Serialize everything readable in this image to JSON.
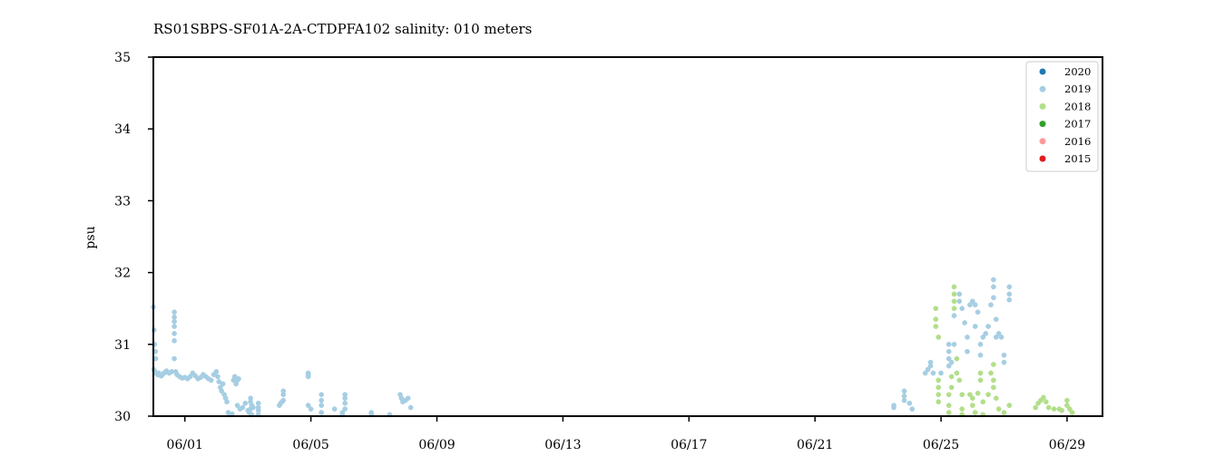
{
  "chart_data": {
    "type": "scatter",
    "title": "RS01SBPS-SF01A-2A-CTDPFA102 salinity: 010 meters",
    "xlabel": "",
    "ylabel": "psu",
    "xlim": [
      "05-31 00:00",
      "06-30 03:00"
    ],
    "ylim": [
      30,
      35
    ],
    "x_tick_labels": [
      "06/01",
      "06/05",
      "06/09",
      "06/13",
      "06/17",
      "06/21",
      "06/25",
      "06/29"
    ],
    "x_tick_dates": [
      "06-01",
      "06-05",
      "06-09",
      "06-13",
      "06-17",
      "06-21",
      "06-25",
      "06-29"
    ],
    "y_ticks": [
      30,
      31,
      32,
      33,
      34,
      35
    ],
    "grid": false,
    "legend_position": "top-right",
    "legend": [
      {
        "name": "2020",
        "color": "#1f78b4"
      },
      {
        "name": "2019",
        "color": "#a6cee3"
      },
      {
        "name": "2018",
        "color": "#b2df8a"
      },
      {
        "name": "2017",
        "color": "#33a02c"
      },
      {
        "name": "2016",
        "color": "#fb9a99"
      },
      {
        "name": "2015",
        "color": "#e31a1c"
      }
    ],
    "series": [
      {
        "name": "2019",
        "color": "#a6cee3",
        "points": [
          [
            "05-31 00:00",
            31.52
          ],
          [
            "05-31 00:30",
            31.2
          ],
          [
            "05-31 01:00",
            31.0
          ],
          [
            "05-31 01:30",
            30.9
          ],
          [
            "05-31 01:45",
            30.8
          ],
          [
            "05-31 00:15",
            30.65
          ],
          [
            "05-31 01:00",
            30.63
          ],
          [
            "05-31 02:00",
            30.6
          ],
          [
            "05-31 03:00",
            30.58
          ],
          [
            "05-31 04:00",
            30.6
          ],
          [
            "05-31 05:00",
            30.57
          ],
          [
            "05-31 06:00",
            30.56
          ],
          [
            "05-31 07:00",
            30.58
          ],
          [
            "05-31 08:00",
            30.6
          ],
          [
            "05-31 09:00",
            30.61
          ],
          [
            "05-31 10:00",
            30.63
          ],
          [
            "05-31 12:00",
            30.6
          ],
          [
            "05-31 14:00",
            30.62
          ],
          [
            "05-31 16:00",
            31.45
          ],
          [
            "05-31 16:00",
            31.38
          ],
          [
            "05-31 16:00",
            31.32
          ],
          [
            "05-31 16:00",
            31.25
          ],
          [
            "05-31 16:00",
            31.15
          ],
          [
            "05-31 16:00",
            31.05
          ],
          [
            "05-31 16:00",
            30.8
          ],
          [
            "05-31 17:00",
            30.62
          ],
          [
            "05-31 18:00",
            30.58
          ],
          [
            "05-31 20:00",
            30.55
          ],
          [
            "05-31 22:00",
            30.53
          ],
          [
            "06-01 00:00",
            30.54
          ],
          [
            "06-01 02:00",
            30.52
          ],
          [
            "06-01 04:00",
            30.55
          ],
          [
            "06-01 06:00",
            30.6
          ],
          [
            "06-01 08:00",
            30.56
          ],
          [
            "06-01 10:00",
            30.52
          ],
          [
            "06-01 12:00",
            30.54
          ],
          [
            "06-01 14:00",
            30.58
          ],
          [
            "06-01 16:00",
            30.55
          ],
          [
            "06-01 18:00",
            30.52
          ],
          [
            "06-01 20:00",
            30.5
          ],
          [
            "06-01 22:00",
            30.58
          ],
          [
            "06-02 00:00",
            30.62
          ],
          [
            "06-02 01:00",
            30.55
          ],
          [
            "06-02 02:00",
            30.48
          ],
          [
            "06-02 03:00",
            30.4
          ],
          [
            "06-02 04:00",
            30.35
          ],
          [
            "06-02 05:00",
            30.45
          ],
          [
            "06-02 06:00",
            30.3
          ],
          [
            "06-02 07:00",
            30.25
          ],
          [
            "06-02 08:00",
            30.2
          ],
          [
            "06-02 09:00",
            30.05
          ],
          [
            "06-02 10:00",
            30.02
          ],
          [
            "06-02 12:00",
            30.03
          ],
          [
            "06-02 13:00",
            30.5
          ],
          [
            "06-02 14:00",
            30.55
          ],
          [
            "06-02 15:00",
            30.45
          ],
          [
            "06-02 16:00",
            30.5
          ],
          [
            "06-02 17:00",
            30.52
          ],
          [
            "06-02 16:00",
            30.15
          ],
          [
            "06-02 18:00",
            30.1
          ],
          [
            "06-02 20:00",
            30.12
          ],
          [
            "06-02 22:00",
            30.18
          ],
          [
            "06-03 00:00",
            30.08
          ],
          [
            "06-03 01:00",
            30.05
          ],
          [
            "06-03 02:00",
            30.1
          ],
          [
            "06-03 02:00",
            30.25
          ],
          [
            "06-03 02:00",
            30.2
          ],
          [
            "06-03 03:00",
            30.15
          ],
          [
            "06-03 03:00",
            30.02
          ],
          [
            "06-03 04:00",
            30.12
          ],
          [
            "06-03 08:00",
            30.02
          ],
          [
            "06-03 08:00",
            30.08
          ],
          [
            "06-03 08:00",
            30.12
          ],
          [
            "06-03 08:00",
            30.18
          ],
          [
            "06-04 00:00",
            30.15
          ],
          [
            "06-04 01:00",
            30.18
          ],
          [
            "06-04 02:00",
            30.2
          ],
          [
            "06-04 03:00",
            30.22
          ],
          [
            "06-04 03:00",
            30.3
          ],
          [
            "06-04 03:00",
            30.35
          ],
          [
            "06-04 22:00",
            30.55
          ],
          [
            "06-04 22:00",
            30.58
          ],
          [
            "06-04 22:00",
            30.6
          ],
          [
            "06-04 22:00",
            30.15
          ],
          [
            "06-05 00:00",
            30.1
          ],
          [
            "06-05 08:00",
            30.3
          ],
          [
            "06-05 08:00",
            30.22
          ],
          [
            "06-05 08:00",
            30.15
          ],
          [
            "06-05 08:00",
            30.05
          ],
          [
            "06-05 18:00",
            30.1
          ],
          [
            "06-06 00:00",
            30.02
          ],
          [
            "06-06 00:00",
            30.05
          ],
          [
            "06-06 02:00",
            30.3
          ],
          [
            "06-06 02:00",
            30.25
          ],
          [
            "06-06 02:00",
            30.18
          ],
          [
            "06-06 02:00",
            30.1
          ],
          [
            "06-06 22:00",
            30.02
          ],
          [
            "06-06 22:00",
            30.05
          ],
          [
            "06-07 12:00",
            30.02
          ],
          [
            "06-07 20:00",
            30.3
          ],
          [
            "06-07 21:00",
            30.25
          ],
          [
            "06-07 22:00",
            30.2
          ],
          [
            "06-08 00:00",
            30.22
          ],
          [
            "06-08 02:00",
            30.25
          ],
          [
            "06-08 04:00",
            30.12
          ]
        ]
      },
      {
        "name": "2019",
        "color": "#a6cee3",
        "points": [
          [
            "06-23 12:00",
            30.15
          ],
          [
            "06-23 12:00",
            30.12
          ],
          [
            "06-23 20:00",
            30.35
          ],
          [
            "06-23 20:00",
            30.28
          ],
          [
            "06-23 20:00",
            30.22
          ],
          [
            "06-24 00:00",
            30.18
          ],
          [
            "06-24 02:00",
            30.1
          ],
          [
            "06-24 12:00",
            30.6
          ],
          [
            "06-24 14:00",
            30.65
          ],
          [
            "06-24 16:00",
            30.7
          ],
          [
            "06-24 16:00",
            30.75
          ],
          [
            "06-24 18:00",
            30.6
          ],
          [
            "06-25 00:00",
            30.6
          ],
          [
            "06-25 06:00",
            30.7
          ],
          [
            "06-25 06:00",
            30.8
          ],
          [
            "06-25 06:00",
            30.9
          ],
          [
            "06-25 06:00",
            31.0
          ],
          [
            "06-25 08:00",
            30.75
          ],
          [
            "06-25 10:00",
            31.4
          ],
          [
            "06-25 10:00",
            31.0
          ],
          [
            "06-25 14:00",
            31.7
          ],
          [
            "06-25 14:00",
            31.6
          ],
          [
            "06-25 16:00",
            31.5
          ],
          [
            "06-25 18:00",
            31.3
          ],
          [
            "06-25 20:00",
            31.1
          ],
          [
            "06-25 20:00",
            30.9
          ],
          [
            "06-25 22:00",
            31.55
          ],
          [
            "06-26 00:00",
            31.6
          ],
          [
            "06-26 02:00",
            31.55
          ],
          [
            "06-26 02:00",
            31.25
          ],
          [
            "06-26 04:00",
            31.45
          ],
          [
            "06-26 06:00",
            30.85
          ],
          [
            "06-26 06:00",
            31.0
          ],
          [
            "06-26 08:00",
            31.1
          ],
          [
            "06-26 10:00",
            31.15
          ],
          [
            "06-26 12:00",
            31.25
          ],
          [
            "06-26 14:00",
            31.55
          ],
          [
            "06-26 16:00",
            31.9
          ],
          [
            "06-26 16:00",
            31.8
          ],
          [
            "06-26 16:00",
            31.65
          ],
          [
            "06-26 18:00",
            31.35
          ],
          [
            "06-26 18:00",
            31.1
          ],
          [
            "06-26 20:00",
            31.15
          ],
          [
            "06-26 22:00",
            31.1
          ],
          [
            "06-27 00:00",
            30.85
          ],
          [
            "06-27 00:00",
            30.75
          ],
          [
            "06-27 04:00",
            31.8
          ],
          [
            "06-27 04:00",
            31.7
          ],
          [
            "06-27 04:00",
            31.62
          ]
        ]
      },
      {
        "name": "2018",
        "color": "#b2df8a",
        "points": [
          [
            "06-24 20:00",
            31.5
          ],
          [
            "06-24 20:00",
            31.35
          ],
          [
            "06-24 20:00",
            31.25
          ],
          [
            "06-24 22:00",
            31.1
          ],
          [
            "06-24 22:00",
            30.5
          ],
          [
            "06-24 22:00",
            30.4
          ],
          [
            "06-24 22:00",
            30.3
          ],
          [
            "06-24 22:00",
            30.2
          ],
          [
            "06-25 06:00",
            30.3
          ],
          [
            "06-25 06:00",
            30.15
          ],
          [
            "06-25 06:00",
            30.05
          ],
          [
            "06-25 08:00",
            30.4
          ],
          [
            "06-25 08:00",
            30.55
          ],
          [
            "06-25 10:00",
            31.8
          ],
          [
            "06-25 10:00",
            31.7
          ],
          [
            "06-25 10:00",
            31.6
          ],
          [
            "06-25 10:00",
            31.5
          ],
          [
            "06-25 12:00",
            30.8
          ],
          [
            "06-25 12:00",
            30.6
          ],
          [
            "06-25 14:00",
            30.5
          ],
          [
            "06-25 16:00",
            30.3
          ],
          [
            "06-25 16:00",
            30.1
          ],
          [
            "06-25 16:00",
            30.02
          ],
          [
            "06-25 22:00",
            30.3
          ],
          [
            "06-26 00:00",
            30.25
          ],
          [
            "06-26 00:00",
            30.15
          ],
          [
            "06-26 02:00",
            30.05
          ],
          [
            "06-26 04:00",
            30.32
          ],
          [
            "06-26 06:00",
            30.6
          ],
          [
            "06-26 06:00",
            30.5
          ],
          [
            "06-26 08:00",
            30.2
          ],
          [
            "06-26 08:00",
            30.02
          ],
          [
            "06-26 12:00",
            30.3
          ],
          [
            "06-26 14:00",
            30.6
          ],
          [
            "06-26 16:00",
            30.72
          ],
          [
            "06-26 16:00",
            30.5
          ],
          [
            "06-26 16:00",
            30.4
          ],
          [
            "06-26 18:00",
            30.25
          ],
          [
            "06-26 20:00",
            30.1
          ],
          [
            "06-27 00:00",
            30.05
          ],
          [
            "06-27 04:00",
            30.15
          ],
          [
            "06-28 00:00",
            30.12
          ],
          [
            "06-28 02:00",
            30.18
          ],
          [
            "06-28 04:00",
            30.22
          ],
          [
            "06-28 06:00",
            30.26
          ],
          [
            "06-28 08:00",
            30.2
          ],
          [
            "06-28 10:00",
            30.12
          ],
          [
            "06-28 14:00",
            30.1
          ],
          [
            "06-28 18:00",
            30.1
          ],
          [
            "06-28 20:00",
            30.08
          ],
          [
            "06-29 00:00",
            30.22
          ],
          [
            "06-29 00:00",
            30.15
          ],
          [
            "06-29 02:00",
            30.1
          ],
          [
            "06-29 04:00",
            30.05
          ]
        ]
      }
    ]
  }
}
